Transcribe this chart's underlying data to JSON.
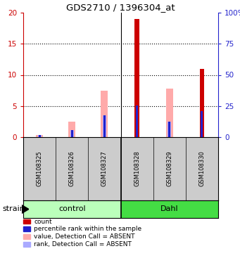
{
  "title": "GDS2710 / 1396304_at",
  "samples": [
    "GSM108325",
    "GSM108326",
    "GSM108327",
    "GSM108328",
    "GSM108329",
    "GSM108330"
  ],
  "group_labels": [
    "control",
    "Dahl"
  ],
  "group_colors": [
    "#bbffbb",
    "#44dd44"
  ],
  "ylim_left": [
    0,
    20
  ],
  "yticks_left": [
    0,
    5,
    10,
    15,
    20
  ],
  "ytick_labels_right": [
    "0",
    "25",
    "50",
    "75",
    "100"
  ],
  "red_bars": [
    0,
    0,
    0,
    19.0,
    0,
    11.0
  ],
  "pink_bars": [
    0.3,
    2.5,
    7.5,
    0,
    7.8,
    0
  ],
  "blue_bars": [
    0.3,
    1.1,
    3.5,
    5.1,
    2.5,
    4.2
  ],
  "lightblue_bars": [
    0.3,
    1.1,
    3.5,
    0,
    2.5,
    0
  ],
  "red_color": "#cc0000",
  "blue_color": "#2222cc",
  "pink_color": "#ffaaaa",
  "lightblue_color": "#aaaaff",
  "label_area_color": "#cccccc",
  "strain_label": "strain",
  "legend_items": [
    {
      "color": "#cc0000",
      "label": "count"
    },
    {
      "color": "#2222cc",
      "label": "percentile rank within the sample"
    },
    {
      "color": "#ffaaaa",
      "label": "value, Detection Call = ABSENT"
    },
    {
      "color": "#aaaaff",
      "label": "rank, Detection Call = ABSENT"
    }
  ]
}
